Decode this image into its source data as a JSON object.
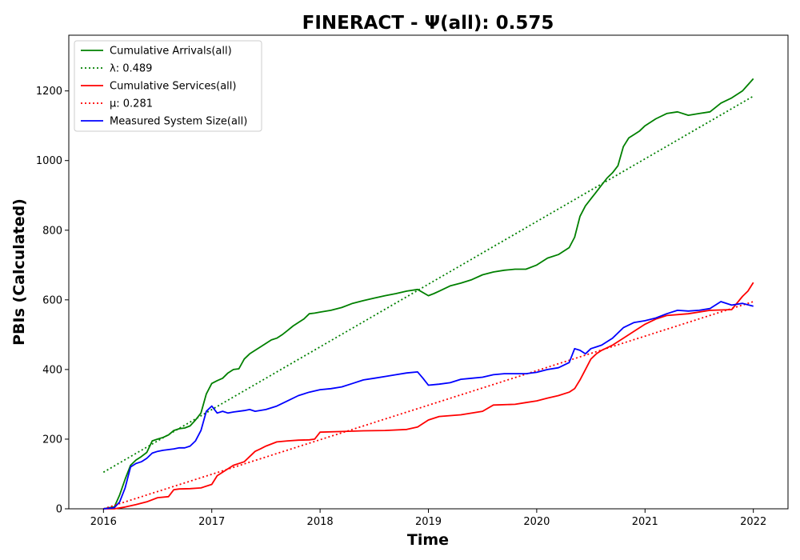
{
  "chart_data": {
    "type": "line",
    "title": "FINERACT -  Ψ(all): 0.575",
    "xlabel": "Time",
    "ylabel": "PBIs (Calculated)",
    "xlim": [
      2015.68,
      2022.32
    ],
    "ylim": [
      0,
      1360
    ],
    "xticks": [
      2016,
      2017,
      2018,
      2019,
      2020,
      2021,
      2022
    ],
    "xtick_labels": [
      "2016",
      "2017",
      "2018",
      "2019",
      "2020",
      "2021",
      "2022"
    ],
    "yticks": [
      0,
      200,
      400,
      600,
      800,
      1000,
      1200
    ],
    "ytick_labels": [
      "0",
      "200",
      "400",
      "600",
      "800",
      "1000",
      "1200"
    ],
    "grid": false,
    "legend_position": "top-left",
    "series": [
      {
        "name": "Cumulative Arrivals(all)",
        "style": "solid",
        "color": "#008000",
        "x": [
          2016.0,
          2016.05,
          2016.1,
          2016.15,
          2016.2,
          2016.25,
          2016.3,
          2016.35,
          2016.4,
          2016.45,
          2016.5,
          2016.55,
          2016.6,
          2016.65,
          2016.7,
          2016.75,
          2016.8,
          2016.85,
          2016.9,
          2016.95,
          2017.0,
          2017.05,
          2017.1,
          2017.15,
          2017.2,
          2017.25,
          2017.3,
          2017.35,
          2017.4,
          2017.45,
          2017.5,
          2017.55,
          2017.6,
          2017.65,
          2017.7,
          2017.75,
          2017.8,
          2017.85,
          2017.9,
          2017.95,
          2018.0,
          2018.1,
          2018.2,
          2018.3,
          2018.4,
          2018.5,
          2018.6,
          2018.7,
          2018.8,
          2018.9,
          2019.0,
          2019.05,
          2019.1,
          2019.2,
          2019.3,
          2019.4,
          2019.5,
          2019.6,
          2019.7,
          2019.8,
          2019.9,
          2020.0,
          2020.1,
          2020.2,
          2020.3,
          2020.35,
          2020.4,
          2020.45,
          2020.5,
          2020.55,
          2020.6,
          2020.65,
          2020.7,
          2020.75,
          2020.8,
          2020.85,
          2020.9,
          2020.95,
          2021.0,
          2021.1,
          2021.2,
          2021.3,
          2021.4,
          2021.5,
          2021.6,
          2021.7,
          2021.8,
          2021.9,
          2022.0
        ],
        "y": [
          0,
          3,
          5,
          40,
          85,
          125,
          140,
          150,
          162,
          195,
          200,
          205,
          212,
          225,
          230,
          232,
          238,
          255,
          275,
          330,
          360,
          368,
          375,
          390,
          400,
          402,
          430,
          445,
          455,
          465,
          475,
          485,
          490,
          500,
          512,
          525,
          535,
          545,
          560,
          562,
          565,
          570,
          578,
          590,
          598,
          605,
          612,
          618,
          625,
          630,
          612,
          618,
          625,
          640,
          648,
          658,
          672,
          680,
          685,
          688,
          688,
          700,
          720,
          730,
          750,
          780,
          840,
          870,
          890,
          910,
          930,
          950,
          965,
          985,
          1040,
          1065,
          1075,
          1085,
          1100,
          1120,
          1135,
          1140,
          1130,
          1135,
          1140,
          1165,
          1180,
          1200,
          1235
        ]
      },
      {
        "name": "λ: 0.489",
        "style": "dotted",
        "color": "#008000",
        "x": [
          2016.0,
          2022.0
        ],
        "y": [
          105,
          1185
        ]
      },
      {
        "name": "Cumulative Services(all)",
        "style": "solid",
        "color": "#ff0000",
        "x": [
          2016.0,
          2016.1,
          2016.2,
          2016.3,
          2016.4,
          2016.5,
          2016.6,
          2016.65,
          2016.7,
          2016.8,
          2016.9,
          2017.0,
          2017.05,
          2017.1,
          2017.2,
          2017.3,
          2017.35,
          2017.4,
          2017.45,
          2017.5,
          2017.6,
          2017.7,
          2017.8,
          2017.9,
          2017.95,
          2018.0,
          2018.2,
          2018.4,
          2018.6,
          2018.8,
          2018.9,
          2019.0,
          2019.1,
          2019.3,
          2019.5,
          2019.6,
          2019.8,
          2019.9,
          2020.0,
          2020.1,
          2020.2,
          2020.3,
          2020.35,
          2020.4,
          2020.45,
          2020.5,
          2020.55,
          2020.6,
          2020.7,
          2020.8,
          2020.9,
          2021.0,
          2021.1,
          2021.2,
          2021.4,
          2021.6,
          2021.8,
          2021.9,
          2021.95,
          2022.0
        ],
        "y": [
          0,
          0,
          5,
          12,
          20,
          32,
          35,
          55,
          57,
          58,
          60,
          70,
          95,
          105,
          125,
          135,
          150,
          165,
          172,
          180,
          192,
          195,
          197,
          198,
          200,
          220,
          222,
          224,
          225,
          228,
          235,
          255,
          265,
          270,
          280,
          298,
          300,
          305,
          310,
          318,
          325,
          335,
          345,
          370,
          400,
          430,
          445,
          455,
          470,
          490,
          510,
          530,
          545,
          555,
          560,
          570,
          572,
          610,
          625,
          650
        ]
      },
      {
        "name": "μ: 0.281",
        "style": "dotted",
        "color": "#ff0000",
        "x": [
          2016.0,
          2022.0
        ],
        "y": [
          0,
          595
        ]
      },
      {
        "name": "Measured System Size(all)",
        "style": "solid",
        "color": "#0000ff",
        "x": [
          2016.0,
          2016.1,
          2016.15,
          2016.2,
          2016.25,
          2016.3,
          2016.35,
          2016.4,
          2016.45,
          2016.5,
          2016.55,
          2016.6,
          2016.65,
          2016.7,
          2016.75,
          2016.8,
          2016.85,
          2016.9,
          2016.95,
          2017.0,
          2017.05,
          2017.1,
          2017.15,
          2017.2,
          2017.3,
          2017.35,
          2017.4,
          2017.5,
          2017.6,
          2017.7,
          2017.8,
          2017.9,
          2018.0,
          2018.1,
          2018.2,
          2018.3,
          2018.4,
          2018.5,
          2018.6,
          2018.7,
          2018.8,
          2018.9,
          2018.95,
          2019.0,
          2019.1,
          2019.2,
          2019.3,
          2019.4,
          2019.5,
          2019.6,
          2019.7,
          2019.8,
          2019.9,
          2020.0,
          2020.1,
          2020.2,
          2020.3,
          2020.35,
          2020.4,
          2020.45,
          2020.5,
          2020.55,
          2020.6,
          2020.7,
          2020.8,
          2020.9,
          2021.0,
          2021.1,
          2021.2,
          2021.3,
          2021.4,
          2021.5,
          2021.6,
          2021.7,
          2021.8,
          2021.9,
          2022.0
        ],
        "y": [
          0,
          3,
          20,
          60,
          120,
          130,
          135,
          145,
          160,
          165,
          168,
          170,
          172,
          175,
          175,
          180,
          195,
          225,
          280,
          295,
          275,
          280,
          275,
          278,
          282,
          285,
          280,
          285,
          295,
          310,
          325,
          335,
          342,
          345,
          350,
          360,
          370,
          375,
          380,
          385,
          390,
          393,
          375,
          355,
          358,
          362,
          372,
          375,
          378,
          385,
          388,
          388,
          388,
          392,
          400,
          405,
          420,
          460,
          455,
          445,
          460,
          465,
          470,
          490,
          520,
          535,
          540,
          548,
          560,
          570,
          568,
          570,
          575,
          595,
          585,
          590,
          582
        ]
      }
    ]
  }
}
